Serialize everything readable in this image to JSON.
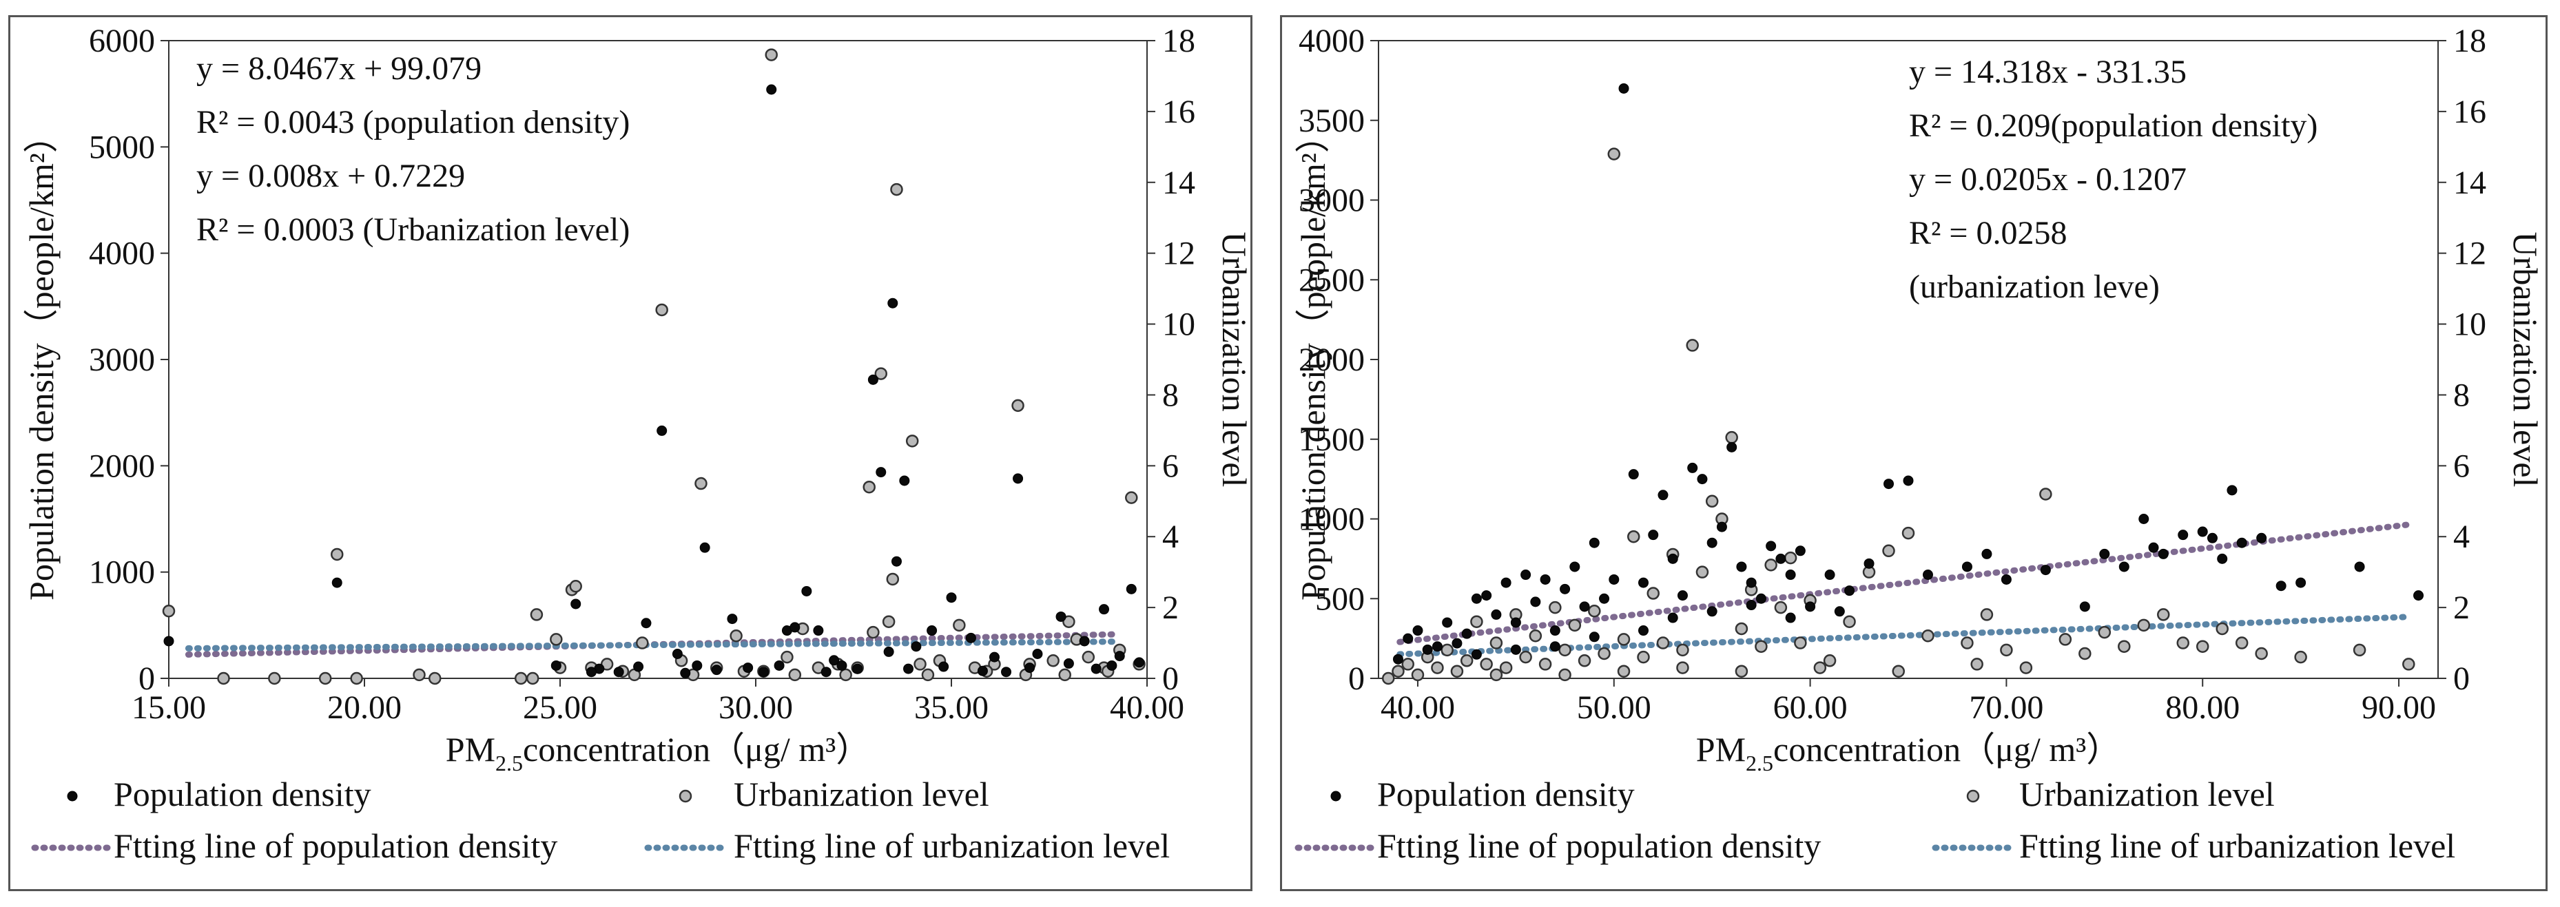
{
  "chart_data": [
    {
      "type": "scatter",
      "id": "left",
      "xlabel_main": "PM",
      "xlabel_sub": "2.5",
      "xlabel_rest": "concentration（μg/ m³）",
      "ylabel": "Population density（people/km²）",
      "y2label": "Urbanization level",
      "xlim": [
        15,
        40
      ],
      "ylim": [
        0,
        6000
      ],
      "y2lim": [
        0,
        18
      ],
      "xticks": [
        "15.00",
        "20.00",
        "25.00",
        "30.00",
        "35.00",
        "40.00"
      ],
      "xtick_values": [
        15,
        20,
        25,
        30,
        35,
        40
      ],
      "yticks": [
        "0",
        "1000",
        "2000",
        "3000",
        "4000",
        "5000",
        "6000"
      ],
      "ytick_values": [
        0,
        1000,
        2000,
        3000,
        4000,
        5000,
        6000
      ],
      "y2ticks": [
        "0",
        "2",
        "4",
        "6",
        "8",
        "10",
        "12",
        "14",
        "16",
        "18"
      ],
      "y2tick_values": [
        0,
        2,
        4,
        6,
        8,
        10,
        12,
        14,
        16,
        18
      ],
      "equations": [
        "y = 8.0467x + 99.079",
        "R² = 0.0043 (population density)",
        "y = 0.008x + 0.7229",
        "R² = 0.0003 (Urbanization level)"
      ],
      "fit_population": {
        "slope": 8.0467,
        "intercept": 99.079
      },
      "fit_urbanization": {
        "slope": 0.008,
        "intercept": 0.7229
      },
      "population_density": [
        [
          15.0,
          350
        ],
        [
          19.3,
          900
        ],
        [
          24.9,
          120
        ],
        [
          25.4,
          700
        ],
        [
          27.2,
          520
        ],
        [
          27.6,
          2330
        ],
        [
          28.0,
          230
        ],
        [
          28.5,
          120
        ],
        [
          28.7,
          1230
        ],
        [
          29.4,
          560
        ],
        [
          30.4,
          5540
        ],
        [
          30.8,
          450
        ],
        [
          31.0,
          480
        ],
        [
          31.3,
          820
        ],
        [
          31.6,
          450
        ],
        [
          32.0,
          170
        ],
        [
          32.2,
          120
        ],
        [
          33.0,
          2810
        ],
        [
          33.2,
          1940
        ],
        [
          33.4,
          250
        ],
        [
          33.5,
          3530
        ],
        [
          33.6,
          1100
        ],
        [
          33.8,
          1860
        ],
        [
          34.1,
          300
        ],
        [
          34.5,
          450
        ],
        [
          35.0,
          760
        ],
        [
          35.5,
          380
        ],
        [
          36.1,
          200
        ],
        [
          36.7,
          1880
        ],
        [
          37.2,
          230
        ],
        [
          37.8,
          580
        ],
        [
          38.0,
          140
        ],
        [
          38.4,
          350
        ],
        [
          38.9,
          650
        ],
        [
          39.3,
          210
        ],
        [
          39.6,
          840
        ],
        [
          39.8,
          150
        ],
        [
          26.0,
          90
        ],
        [
          26.5,
          60
        ],
        [
          27.0,
          110
        ],
        [
          29.0,
          80
        ],
        [
          29.8,
          100
        ],
        [
          30.2,
          60
        ],
        [
          32.6,
          90
        ],
        [
          34.8,
          110
        ],
        [
          35.8,
          70
        ],
        [
          37.0,
          100
        ],
        [
          38.7,
          90
        ],
        [
          39.1,
          120
        ],
        [
          25.8,
          60
        ],
        [
          28.2,
          50
        ],
        [
          30.6,
          120
        ],
        [
          31.8,
          60
        ],
        [
          33.9,
          90
        ],
        [
          36.4,
          60
        ]
      ],
      "urbanization_level": [
        [
          15.0,
          1.9
        ],
        [
          16.4,
          0.0
        ],
        [
          17.7,
          0.0
        ],
        [
          19.3,
          3.5
        ],
        [
          19.0,
          0.0
        ],
        [
          19.8,
          0.0
        ],
        [
          21.4,
          0.1
        ],
        [
          21.8,
          0.0
        ],
        [
          24.0,
          0.0
        ],
        [
          24.3,
          0.0
        ],
        [
          24.4,
          1.8
        ],
        [
          24.9,
          1.1
        ],
        [
          25.0,
          0.3
        ],
        [
          25.3,
          2.5
        ],
        [
          25.4,
          2.6
        ],
        [
          25.8,
          0.3
        ],
        [
          26.2,
          0.4
        ],
        [
          26.6,
          0.2
        ],
        [
          27.1,
          1.0
        ],
        [
          27.6,
          10.4
        ],
        [
          28.1,
          0.5
        ],
        [
          28.6,
          5.5
        ],
        [
          29.0,
          0.3
        ],
        [
          29.5,
          1.2
        ],
        [
          30.2,
          0.2
        ],
        [
          30.4,
          17.6
        ],
        [
          30.8,
          0.6
        ],
        [
          31.2,
          1.4
        ],
        [
          31.6,
          0.3
        ],
        [
          32.1,
          0.4
        ],
        [
          32.6,
          0.3
        ],
        [
          32.9,
          5.4
        ],
        [
          33.0,
          1.3
        ],
        [
          33.2,
          8.6
        ],
        [
          33.4,
          1.6
        ],
        [
          33.5,
          2.8
        ],
        [
          33.6,
          13.8
        ],
        [
          34.0,
          6.7
        ],
        [
          34.2,
          0.4
        ],
        [
          34.7,
          0.5
        ],
        [
          35.2,
          1.5
        ],
        [
          35.6,
          0.3
        ],
        [
          36.1,
          0.4
        ],
        [
          36.7,
          7.7
        ],
        [
          37.0,
          0.4
        ],
        [
          37.6,
          0.5
        ],
        [
          38.0,
          1.6
        ],
        [
          38.2,
          1.1
        ],
        [
          38.5,
          0.6
        ],
        [
          38.9,
          0.3
        ],
        [
          39.3,
          0.8
        ],
        [
          39.6,
          5.1
        ],
        [
          39.8,
          0.4
        ],
        [
          26.9,
          0.1
        ],
        [
          28.4,
          0.1
        ],
        [
          29.7,
          0.2
        ],
        [
          31.0,
          0.1
        ],
        [
          32.3,
          0.1
        ],
        [
          34.4,
          0.1
        ],
        [
          35.9,
          0.2
        ],
        [
          36.9,
          0.1
        ],
        [
          37.9,
          0.1
        ],
        [
          39.0,
          0.2
        ]
      ]
    },
    {
      "type": "scatter",
      "id": "right",
      "xlabel_main": "PM",
      "xlabel_sub": "2.5",
      "xlabel_rest": "concentration（μg/ m³）",
      "ylabel": "Population density（people/km²）",
      "y2label": "Urbanization level",
      "xlim": [
        38,
        92
      ],
      "ylim": [
        0,
        4000
      ],
      "y2lim": [
        0,
        18
      ],
      "xticks": [
        "40.00",
        "50.00",
        "60.00",
        "70.00",
        "80.00",
        "90.00"
      ],
      "xtick_values": [
        40,
        50,
        60,
        70,
        80,
        90
      ],
      "yticks": [
        "0",
        "500",
        "1000",
        "1500",
        "2000",
        "2500",
        "3000",
        "3500",
        "4000"
      ],
      "ytick_values": [
        0,
        500,
        1000,
        1500,
        2000,
        2500,
        3000,
        3500,
        4000
      ],
      "y2ticks": [
        "0",
        "2",
        "4",
        "6",
        "8",
        "10",
        "12",
        "14",
        "16",
        "18"
      ],
      "y2tick_values": [
        0,
        2,
        4,
        6,
        8,
        10,
        12,
        14,
        16,
        18
      ],
      "equations": [
        "y = 14.318x - 331.35",
        "R² = 0.209(population density)",
        "y = 0.0205x - 0.1207",
        "R² = 0.0258",
        "(urbanization leve)"
      ],
      "fit_population": {
        "slope": 14.318,
        "intercept": -331.35
      },
      "fit_urbanization": {
        "slope": 0.0205,
        "intercept": -0.1207
      },
      "population_density": [
        [
          39.0,
          120
        ],
        [
          39.5,
          250
        ],
        [
          40.0,
          300
        ],
        [
          40.5,
          180
        ],
        [
          41.0,
          200
        ],
        [
          41.5,
          350
        ],
        [
          42.0,
          220
        ],
        [
          42.5,
          280
        ],
        [
          43.0,
          500
        ],
        [
          43.5,
          520
        ],
        [
          44.0,
          400
        ],
        [
          44.5,
          600
        ],
        [
          45.0,
          350
        ],
        [
          45.5,
          650
        ],
        [
          46.0,
          480
        ],
        [
          46.5,
          620
        ],
        [
          47.0,
          300
        ],
        [
          47.5,
          560
        ],
        [
          48.0,
          700
        ],
        [
          48.5,
          450
        ],
        [
          49.0,
          850
        ],
        [
          49.5,
          500
        ],
        [
          50.0,
          620
        ],
        [
          50.5,
          3700
        ],
        [
          51.0,
          1280
        ],
        [
          51.5,
          600
        ],
        [
          52.0,
          900
        ],
        [
          52.5,
          1150
        ],
        [
          53.0,
          750
        ],
        [
          53.5,
          520
        ],
        [
          54.0,
          1320
        ],
        [
          54.5,
          1250
        ],
        [
          55.0,
          850
        ],
        [
          55.5,
          950
        ],
        [
          56.0,
          1450
        ],
        [
          56.5,
          700
        ],
        [
          57.0,
          600
        ],
        [
          57.5,
          500
        ],
        [
          58.0,
          830
        ],
        [
          58.5,
          750
        ],
        [
          59.0,
          650
        ],
        [
          59.5,
          800
        ],
        [
          60.0,
          450
        ],
        [
          61.0,
          650
        ],
        [
          62.0,
          550
        ],
        [
          63.0,
          720
        ],
        [
          64.0,
          1220
        ],
        [
          65.0,
          1240
        ],
        [
          66.0,
          650
        ],
        [
          68.0,
          700
        ],
        [
          69.0,
          780
        ],
        [
          70.0,
          620
        ],
        [
          72.0,
          680
        ],
        [
          74.0,
          450
        ],
        [
          75.0,
          780
        ],
        [
          76.0,
          700
        ],
        [
          77.0,
          1000
        ],
        [
          77.5,
          820
        ],
        [
          78.0,
          780
        ],
        [
          79.0,
          900
        ],
        [
          80.0,
          920
        ],
        [
          80.5,
          880
        ],
        [
          81.0,
          750
        ],
        [
          81.5,
          1180
        ],
        [
          82.0,
          850
        ],
        [
          83.0,
          880
        ],
        [
          84.0,
          580
        ],
        [
          85.0,
          600
        ],
        [
          88.0,
          700
        ],
        [
          91.0,
          520
        ],
        [
          43.0,
          150
        ],
        [
          45.0,
          180
        ],
        [
          47.0,
          200
        ],
        [
          49.0,
          260
        ],
        [
          51.5,
          300
        ],
        [
          53.0,
          380
        ],
        [
          55.0,
          420
        ],
        [
          57.0,
          460
        ],
        [
          59.0,
          380
        ],
        [
          61.5,
          420
        ]
      ],
      "urbanization_level": [
        [
          38.5,
          0.0
        ],
        [
          39.0,
          0.2
        ],
        [
          39.5,
          0.4
        ],
        [
          40.0,
          0.1
        ],
        [
          40.5,
          0.6
        ],
        [
          41.0,
          0.3
        ],
        [
          41.5,
          0.8
        ],
        [
          42.0,
          0.2
        ],
        [
          42.5,
          0.5
        ],
        [
          43.0,
          1.6
        ],
        [
          43.5,
          0.4
        ],
        [
          44.0,
          1.0
        ],
        [
          44.5,
          0.3
        ],
        [
          45.0,
          1.8
        ],
        [
          45.5,
          0.6
        ],
        [
          46.0,
          1.2
        ],
        [
          46.5,
          0.4
        ],
        [
          47.0,
          2.0
        ],
        [
          47.5,
          0.8
        ],
        [
          48.0,
          1.5
        ],
        [
          48.5,
          0.5
        ],
        [
          49.0,
          1.9
        ],
        [
          49.5,
          0.7
        ],
        [
          50.0,
          14.8
        ],
        [
          50.5,
          1.1
        ],
        [
          51.0,
          4.0
        ],
        [
          51.5,
          0.6
        ],
        [
          52.0,
          2.4
        ],
        [
          52.5,
          1.0
        ],
        [
          53.0,
          3.5
        ],
        [
          53.5,
          0.8
        ],
        [
          54.0,
          9.4
        ],
        [
          54.5,
          3.0
        ],
        [
          55.0,
          5.0
        ],
        [
          55.5,
          4.5
        ],
        [
          56.0,
          6.8
        ],
        [
          56.5,
          1.4
        ],
        [
          57.0,
          2.5
        ],
        [
          57.5,
          0.9
        ],
        [
          58.0,
          3.2
        ],
        [
          58.5,
          2.0
        ],
        [
          59.0,
          3.4
        ],
        [
          59.5,
          1.0
        ],
        [
          60.0,
          2.2
        ],
        [
          61.0,
          0.5
        ],
        [
          62.0,
          1.6
        ],
        [
          63.0,
          3.0
        ],
        [
          64.0,
          3.6
        ],
        [
          65.0,
          4.1
        ],
        [
          66.0,
          1.2
        ],
        [
          68.0,
          1.0
        ],
        [
          69.0,
          1.8
        ],
        [
          70.0,
          0.8
        ],
        [
          72.0,
          5.2
        ],
        [
          73.0,
          1.1
        ],
        [
          74.0,
          0.7
        ],
        [
          75.0,
          1.3
        ],
        [
          76.0,
          0.9
        ],
        [
          77.0,
          1.5
        ],
        [
          78.0,
          1.8
        ],
        [
          79.0,
          1.0
        ],
        [
          80.0,
          0.9
        ],
        [
          81.0,
          1.4
        ],
        [
          82.0,
          1.0
        ],
        [
          83.0,
          0.7
        ],
        [
          85.0,
          0.6
        ],
        [
          88.0,
          0.8
        ],
        [
          90.5,
          0.4
        ],
        [
          44.0,
          0.1
        ],
        [
          47.5,
          0.1
        ],
        [
          50.5,
          0.2
        ],
        [
          53.5,
          0.3
        ],
        [
          56.5,
          0.2
        ],
        [
          60.5,
          0.3
        ],
        [
          64.5,
          0.2
        ],
        [
          68.5,
          0.4
        ],
        [
          71.0,
          0.3
        ]
      ]
    }
  ],
  "legend": {
    "population_density": "Population density",
    "urbanization_level": "Urbanization level",
    "fit_population": "Ftting line of population density",
    "fit_urbanization": "Ftting line of urbanization level"
  }
}
